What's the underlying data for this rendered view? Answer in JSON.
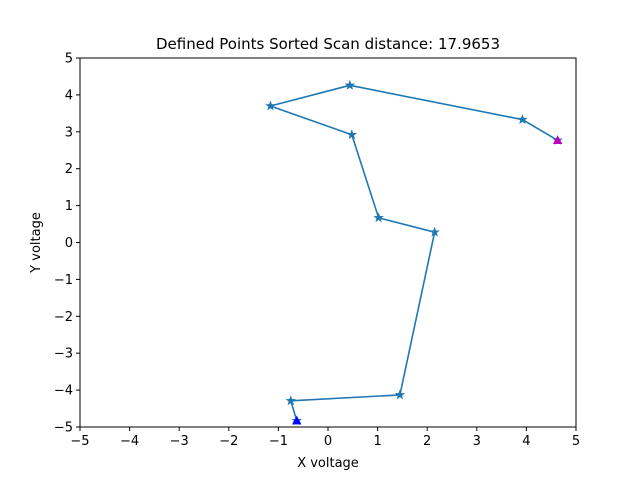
{
  "chart_data": {
    "type": "line",
    "title": "Defined Points Sorted Scan distance: 17.9653",
    "xlabel": "X voltage",
    "ylabel": "Y voltage",
    "xlim": [
      -5,
      5
    ],
    "ylim": [
      -5,
      5
    ],
    "xticks": [
      -5,
      -4,
      -3,
      -2,
      -1,
      0,
      1,
      2,
      3,
      4,
      5
    ],
    "yticks": [
      -5,
      -4,
      -3,
      -2,
      -1,
      0,
      1,
      2,
      3,
      4,
      5
    ],
    "grid": false,
    "series": [
      {
        "marker": "star",
        "color": "#1f77b4",
        "x": [
          4.63,
          3.92,
          0.44,
          -1.16,
          0.48,
          1.02,
          2.15,
          1.45,
          -0.75,
          -0.63
        ],
        "y": [
          2.77,
          3.33,
          4.26,
          3.7,
          2.92,
          0.67,
          0.28,
          -4.13,
          -4.29,
          -4.83
        ]
      }
    ],
    "start_point": {
      "x": 4.63,
      "y": 2.77,
      "marker": "triangle",
      "color": "#bf00bf"
    },
    "end_point": {
      "x": -0.63,
      "y": -4.83,
      "marker": "triangle",
      "color": "#0000ff"
    }
  }
}
